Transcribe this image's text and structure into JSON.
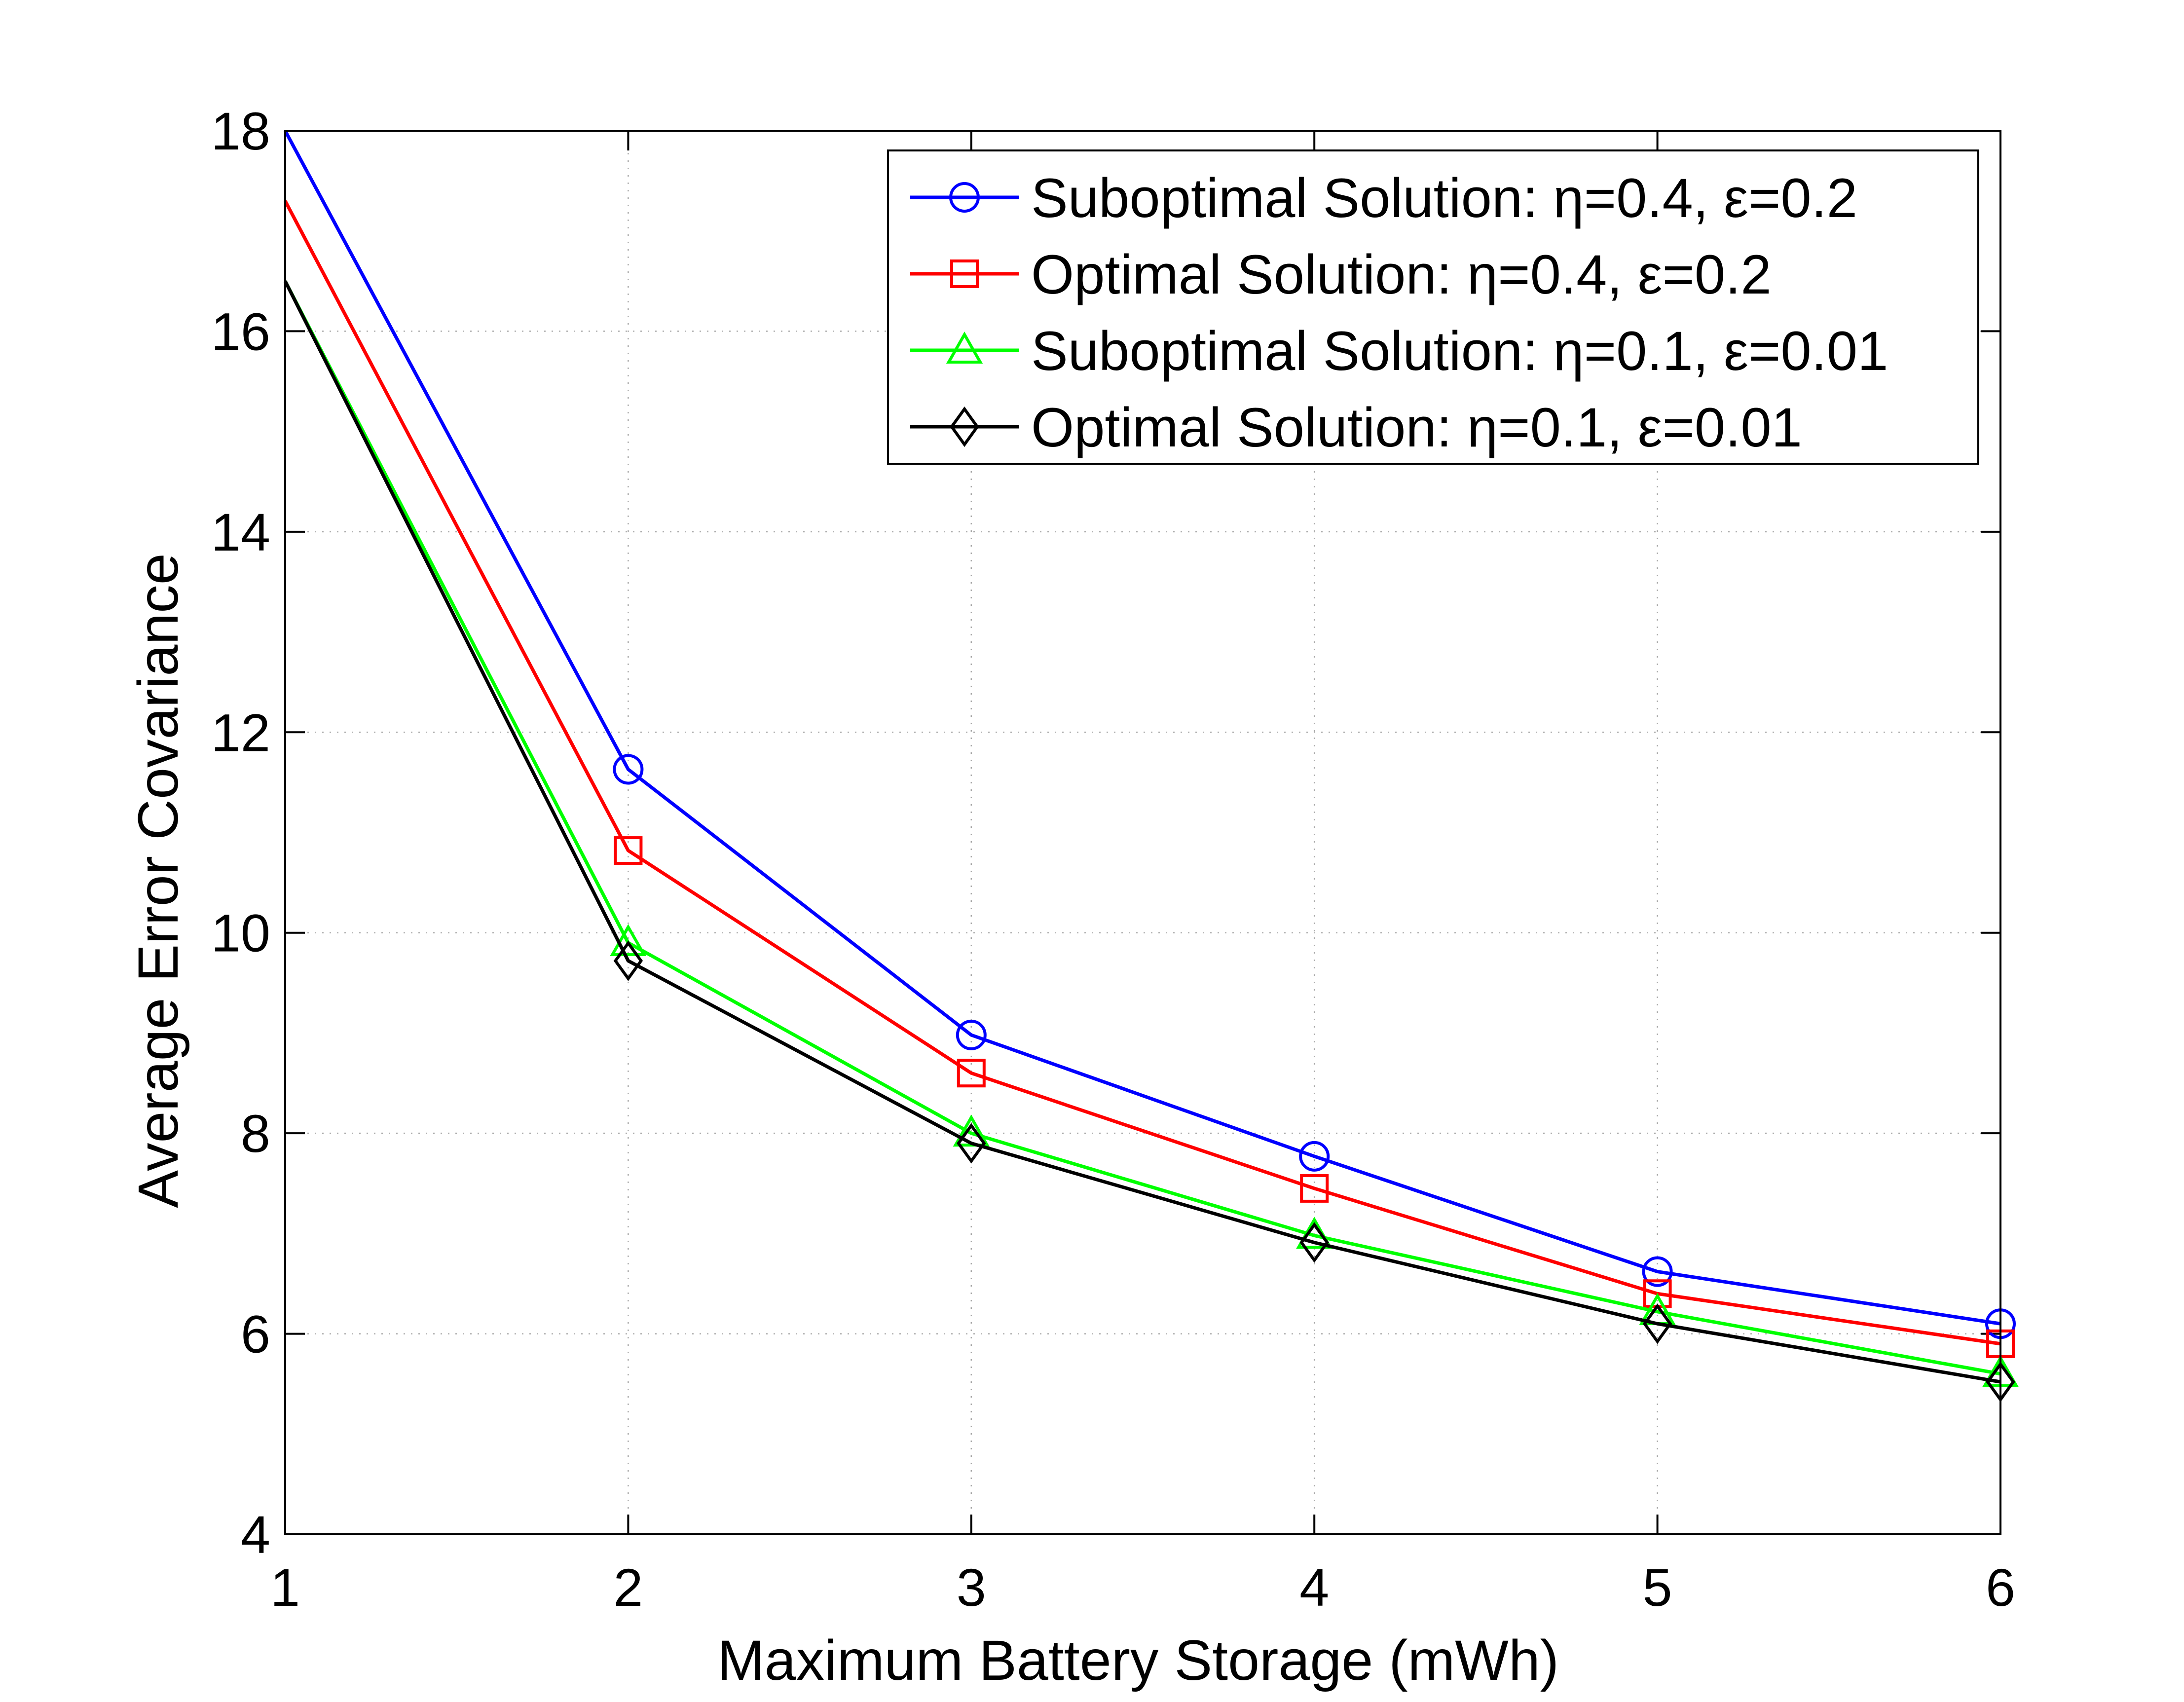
{
  "chart_data": {
    "type": "line",
    "title": "",
    "xlabel": "Maximum Battery Storage (mWh)",
    "ylabel": "Average Error Covariance",
    "x": [
      1,
      2,
      3,
      4,
      5,
      6
    ],
    "xlim": [
      1,
      6
    ],
    "ylim": [
      4,
      18
    ],
    "xticks": [
      "1",
      "2",
      "3",
      "4",
      "5",
      "6"
    ],
    "yticks": [
      "4",
      "6",
      "8",
      "10",
      "12",
      "14",
      "16",
      "18"
    ],
    "grid": true,
    "legend_position": "top-right",
    "series": [
      {
        "name": "Suboptimal Solution: η=0.4, ε=0.2",
        "color": "#0000ff",
        "marker": "circle",
        "values": [
          18.0,
          11.63,
          8.98,
          7.77,
          6.62,
          6.1
        ]
      },
      {
        "name": "Optimal Solution: η=0.4, ε=0.2",
        "color": "#ff0000",
        "marker": "square",
        "values": [
          17.3,
          10.82,
          8.6,
          7.45,
          6.4,
          5.9
        ]
      },
      {
        "name": "Suboptimal Solution: η=0.1, ε=0.01",
        "color": "#00ff00",
        "marker": "triangle",
        "values": [
          16.5,
          9.9,
          8.0,
          6.98,
          6.22,
          5.6
        ]
      },
      {
        "name": "Optimal Solution: η=0.1, ε=0.01",
        "color": "#000000",
        "marker": "diamond",
        "values": [
          16.5,
          9.72,
          7.9,
          6.91,
          6.1,
          5.52
        ]
      }
    ]
  }
}
